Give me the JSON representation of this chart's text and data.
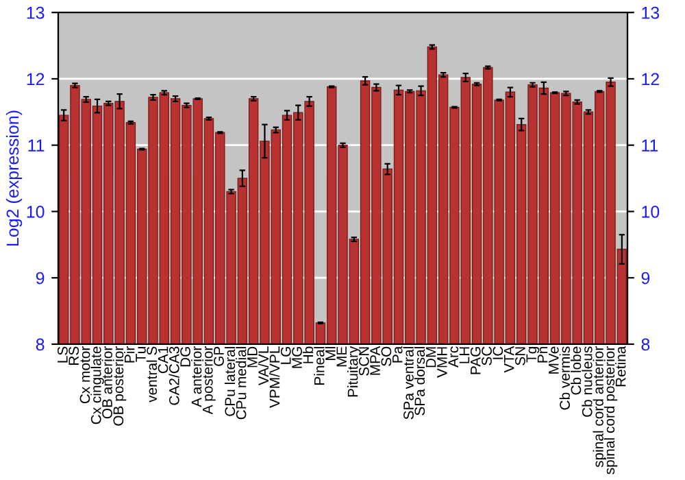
{
  "chart_data": {
    "type": "bar",
    "ylabel": "Log2 (expression)",
    "categories": [
      "LS",
      "RS",
      "Cx motor",
      "Cx cingulate",
      "OB anterior",
      "OB posterior",
      "Pir",
      "Tu",
      "ventral S",
      "CA1",
      "CA2/CA3",
      "DG",
      "A anterior",
      "A posterior",
      "GP",
      "CPu lateral",
      "CPu medial",
      "MD",
      "VA/VL",
      "VPM/VPL",
      "LG",
      "MG",
      "Hb",
      "Pineal",
      "Ml",
      "ME",
      "Pituitary",
      "SCN",
      "MPA",
      "SO",
      "Pa",
      "SPa ventral",
      "SPa dorsal",
      "DM",
      "VMH",
      "Arc",
      "LH",
      "PAG",
      "SC",
      "IC",
      "VTA",
      "SN",
      "Tg",
      "Pn",
      "MVe",
      "Cb vermis",
      "Cb lobe",
      "Cb nucleus",
      "spinal cord anterior",
      "spinal cord posterior",
      "Retina"
    ],
    "values": [
      11.45,
      11.9,
      11.69,
      11.59,
      11.63,
      11.66,
      11.34,
      10.94,
      11.72,
      11.79,
      11.7,
      11.6,
      11.7,
      11.4,
      11.19,
      10.3,
      10.5,
      11.7,
      11.06,
      11.23,
      11.45,
      11.49,
      11.66,
      8.32,
      11.88,
      11.0,
      9.58,
      11.97,
      11.87,
      10.64,
      11.83,
      11.81,
      11.82,
      12.48,
      12.06,
      11.57,
      12.02,
      11.92,
      12.17,
      11.68,
      11.8,
      11.31,
      11.91,
      11.86,
      11.79,
      11.78,
      11.65,
      11.5,
      11.81,
      11.95,
      9.43
    ],
    "errors": [
      0.08,
      0.03,
      0.04,
      0.1,
      0.03,
      0.11,
      0.02,
      0.01,
      0.04,
      0.03,
      0.04,
      0.03,
      0.01,
      0.02,
      0.01,
      0.03,
      0.12,
      0.03,
      0.25,
      0.04,
      0.07,
      0.11,
      0.07,
      0.01,
      0.01,
      0.03,
      0.03,
      0.06,
      0.05,
      0.08,
      0.07,
      0.02,
      0.07,
      0.03,
      0.03,
      0.01,
      0.06,
      0.02,
      0.02,
      0.01,
      0.07,
      0.09,
      0.03,
      0.09,
      0.01,
      0.03,
      0.03,
      0.03,
      0.01,
      0.06,
      0.22
    ],
    "color": "#b83232",
    "ylim": [
      8,
      13
    ],
    "yticks": [
      8,
      9,
      10,
      11,
      12,
      13
    ],
    "y2lim": [
      8,
      13
    ],
    "y2ticks": [
      8,
      9,
      10,
      11,
      12,
      13
    ],
    "grid": "y"
  }
}
